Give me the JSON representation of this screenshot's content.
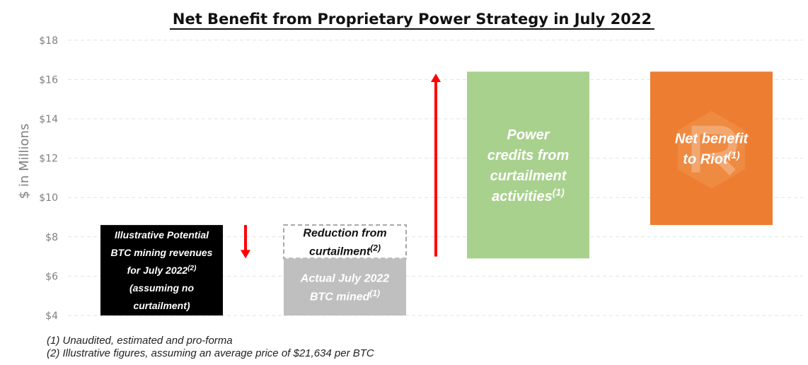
{
  "chart_data": {
    "type": "bar",
    "title": "Net Benefit from Proprietary Power Strategy in July 2022",
    "ylabel": "$ in Millions",
    "ylim": [
      4,
      18
    ],
    "yticks": [
      "$4",
      "$6",
      "$8",
      "$10",
      "$12",
      "$14",
      "$16",
      "$18"
    ],
    "grid": true,
    "bars": [
      {
        "id": "potential",
        "base": 4.0,
        "top": 8.6,
        "color": "#000000",
        "text_color": "#ffffff",
        "label_lines": [
          "Illustrative Potential",
          "BTC mining revenues",
          "for July 2022^(2)",
          "(assuming no",
          "curtailment)"
        ]
      },
      {
        "id": "reduction",
        "base": 6.9,
        "top": 8.6,
        "color": "none",
        "outline": "#a6a6a6",
        "dashed": true,
        "text_color": "#111111",
        "label_lines": [
          "Reduction from",
          "curtailment^(2)"
        ]
      },
      {
        "id": "actual",
        "base": 4.0,
        "top": 6.9,
        "color": "#bfbfbf",
        "text_color": "#ffffff",
        "label_lines": [
          "Actual July 2022",
          "BTC mined^(1)"
        ]
      },
      {
        "id": "credits",
        "base": 6.9,
        "top": 16.4,
        "color": "#a9d18e",
        "text_color": "#ffffff",
        "label_lines": [
          "Power",
          "credits from",
          "curtailment",
          "activities^(1)"
        ]
      },
      {
        "id": "net",
        "base": 8.6,
        "top": 16.4,
        "color": "#ed7d31",
        "text_color": "#ffffff",
        "label_lines": [
          "Net benefit",
          "to Riot^(1)"
        ]
      }
    ],
    "arrows": [
      {
        "id": "decrease",
        "from": 8.6,
        "to": 6.9,
        "color": "#ff0000"
      },
      {
        "id": "increase",
        "from": 7.0,
        "to": 16.3,
        "color": "#ff0000"
      }
    ]
  },
  "footnotes": [
    "(1) Unaudited, estimated and pro-forma",
    "(2) Illustrative figures, assuming an average price of $21,634 per BTC"
  ],
  "logo": {
    "icon": "riot-logo-watermark",
    "color": "#f4a460"
  }
}
